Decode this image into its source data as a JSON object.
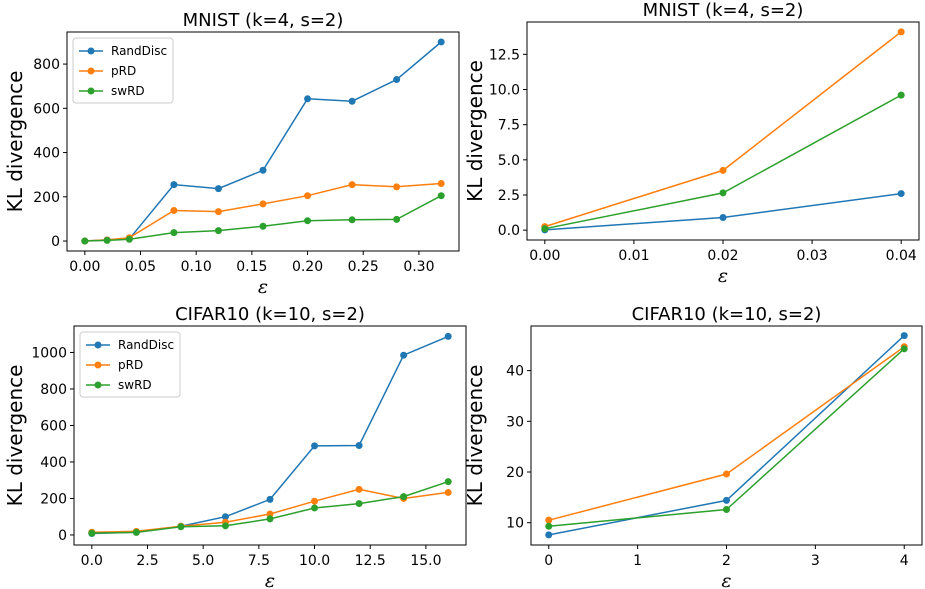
{
  "chart_data": [
    {
      "type": "line",
      "title": "MNIST (k=4, s=2)",
      "xlabel": "ε",
      "ylabel": "KL divergence",
      "x": [
        0.0,
        0.02,
        0.04,
        0.08,
        0.12,
        0.16,
        0.2,
        0.24,
        0.28,
        0.32
      ],
      "xlim": [
        -0.016,
        0.336
      ],
      "ylim": [
        -45,
        945
      ],
      "xticks": [
        0.0,
        0.05,
        0.1,
        0.15,
        0.2,
        0.25,
        0.3
      ],
      "xtick_labels": [
        "0.00",
        "0.05",
        "0.10",
        "0.15",
        "0.20",
        "0.25",
        "0.30"
      ],
      "yticks": [
        0,
        200,
        400,
        600,
        800
      ],
      "ytick_labels": [
        "0",
        "200",
        "400",
        "600",
        "800"
      ],
      "legend": true,
      "legend_position": "top-left",
      "series": [
        {
          "name": "RandDisc",
          "color": "#1f77b4",
          "values": [
            0,
            5,
            10,
            255,
            237,
            320,
            643,
            632,
            730,
            900
          ]
        },
        {
          "name": "pRD",
          "color": "#ff7f0e",
          "values": [
            0,
            5,
            15,
            138,
            133,
            168,
            205,
            255,
            245,
            260
          ]
        },
        {
          "name": "swRD",
          "color": "#2ca02c",
          "values": [
            0,
            3,
            8,
            38,
            47,
            67,
            92,
            96,
            98,
            205
          ]
        }
      ]
    },
    {
      "type": "line",
      "title": "MNIST (k=4, s=2)",
      "xlabel": "ε",
      "ylabel": "KL divergence",
      "x": [
        0.0,
        0.02,
        0.04
      ],
      "xlim": [
        -0.002,
        0.042
      ],
      "ylim": [
        -0.7,
        14.8
      ],
      "xticks": [
        0.0,
        0.01,
        0.02,
        0.03,
        0.04
      ],
      "xtick_labels": [
        "0.00",
        "0.01",
        "0.02",
        "0.03",
        "0.04"
      ],
      "yticks": [
        0,
        2.5,
        5,
        7.5,
        10,
        12.5
      ],
      "ytick_labels": [
        "0.0",
        "2.5",
        "5.0",
        "7.5",
        "10.0",
        "12.5"
      ],
      "legend": false,
      "series": [
        {
          "name": "RandDisc",
          "color": "#1f77b4",
          "values": [
            0.02,
            0.9,
            2.6
          ]
        },
        {
          "name": "pRD",
          "color": "#ff7f0e",
          "values": [
            0.25,
            4.25,
            14.1
          ]
        },
        {
          "name": "swRD",
          "color": "#2ca02c",
          "values": [
            0.1,
            2.65,
            9.6
          ]
        }
      ]
    },
    {
      "type": "line",
      "title": "CIFAR10 (k=10, s=2)",
      "xlabel": "ε",
      "ylabel": "KL divergence",
      "x": [
        0,
        2,
        4,
        6,
        8,
        10,
        12,
        14,
        16
      ],
      "xlim": [
        -0.8,
        16.8
      ],
      "ylim": [
        -55,
        1145
      ],
      "xticks": [
        0,
        2.5,
        5,
        7.5,
        10,
        12.5,
        15
      ],
      "xtick_labels": [
        "0.0",
        "2.5",
        "5.0",
        "7.5",
        "10.0",
        "12.5",
        "15.0"
      ],
      "yticks": [
        0,
        200,
        400,
        600,
        800,
        1000
      ],
      "ytick_labels": [
        "0",
        "200",
        "400",
        "600",
        "800",
        "1000"
      ],
      "legend": true,
      "legend_position": "top-left",
      "series": [
        {
          "name": "RandDisc",
          "color": "#1f77b4",
          "values": [
            8,
            15,
            48,
            100,
            195,
            488,
            490,
            985,
            1088
          ]
        },
        {
          "name": "pRD",
          "color": "#ff7f0e",
          "values": [
            15,
            20,
            48,
            70,
            115,
            185,
            250,
            200,
            233
          ]
        },
        {
          "name": "swRD",
          "color": "#2ca02c",
          "values": [
            10,
            14,
            45,
            50,
            88,
            148,
            172,
            210,
            292
          ]
        }
      ]
    },
    {
      "type": "line",
      "title": "CIFAR10 (k=10, s=2)",
      "xlabel": "ε",
      "ylabel": "KL divergence",
      "x": [
        0,
        2,
        4
      ],
      "xlim": [
        -0.2,
        4.2
      ],
      "ylim": [
        5.6,
        48.8
      ],
      "xticks": [
        0,
        1,
        2,
        3,
        4
      ],
      "xtick_labels": [
        "0",
        "1",
        "2",
        "3",
        "4"
      ],
      "yticks": [
        10,
        20,
        30,
        40
      ],
      "ytick_labels": [
        "10",
        "20",
        "30",
        "40"
      ],
      "legend": false,
      "series": [
        {
          "name": "RandDisc",
          "color": "#1f77b4",
          "values": [
            7.6,
            14.4,
            46.9
          ]
        },
        {
          "name": "pRD",
          "color": "#ff7f0e",
          "values": [
            10.5,
            19.6,
            44.7
          ]
        },
        {
          "name": "swRD",
          "color": "#2ca02c",
          "values": [
            9.3,
            12.6,
            44.3
          ]
        }
      ]
    }
  ]
}
